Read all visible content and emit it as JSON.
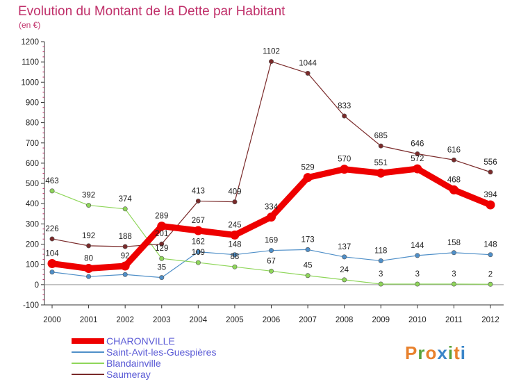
{
  "chart_data": {
    "type": "line",
    "title": "Evolution du Montant de la Dette par Habitant",
    "unit": "(en €)",
    "x": [
      "2000",
      "2001",
      "2002",
      "2003",
      "2004",
      "2005",
      "2006",
      "2007",
      "2008",
      "2009",
      "2010",
      "2011",
      "2012"
    ],
    "ylim": [
      -100,
      1200
    ],
    "yticks": [
      -100,
      0,
      100,
      200,
      300,
      400,
      500,
      600,
      700,
      800,
      900,
      1000,
      1100,
      1200
    ],
    "grid": false,
    "legend_position": "bottom-left",
    "series": [
      {
        "name": "CHARONVILLE",
        "color": "#ee0000",
        "values": [
          104,
          80,
          92,
          289,
          267,
          245,
          334,
          529,
          570,
          551,
          572,
          468,
          394
        ],
        "labels": [
          "104",
          "80",
          "92",
          "289",
          "267",
          "245",
          "334",
          "529",
          "570",
          "551",
          "572",
          "468",
          "394"
        ]
      },
      {
        "name": "Saint-Avit-les-Guespières",
        "color": "#4f8fc8",
        "values": [
          62,
          40,
          50,
          35,
          162,
          148,
          169,
          173,
          137,
          118,
          144,
          158,
          148
        ],
        "labels": [
          "",
          "",
          "",
          "35",
          "162",
          "148",
          "169",
          "173",
          "137",
          "118",
          "144",
          "158",
          "148"
        ]
      },
      {
        "name": "Blandainville",
        "color": "#8fd65a",
        "values": [
          463,
          392,
          374,
          129,
          109,
          88,
          67,
          45,
          24,
          3,
          3,
          3,
          2
        ],
        "labels": [
          "463",
          "392",
          "374",
          "129",
          "109",
          "88",
          "67",
          "45",
          "24",
          "3",
          "3",
          "3",
          "2"
        ]
      },
      {
        "name": "Saumeray",
        "color": "#7a2a2a",
        "values": [
          226,
          192,
          188,
          201,
          413,
          409,
          1102,
          1044,
          833,
          685,
          646,
          616,
          556
        ],
        "labels": [
          "226",
          "192",
          "188",
          "201",
          "413",
          "409",
          "1102",
          "1044",
          "833",
          "685",
          "646",
          "616",
          "556"
        ]
      }
    ]
  },
  "logo": {
    "text": "Proxiti",
    "letter_colors": [
      "#e8812d",
      "#58a33a",
      "#e8812d",
      "#3b86c9",
      "#58a33a",
      "#e8812d",
      "#3b86c9"
    ]
  }
}
